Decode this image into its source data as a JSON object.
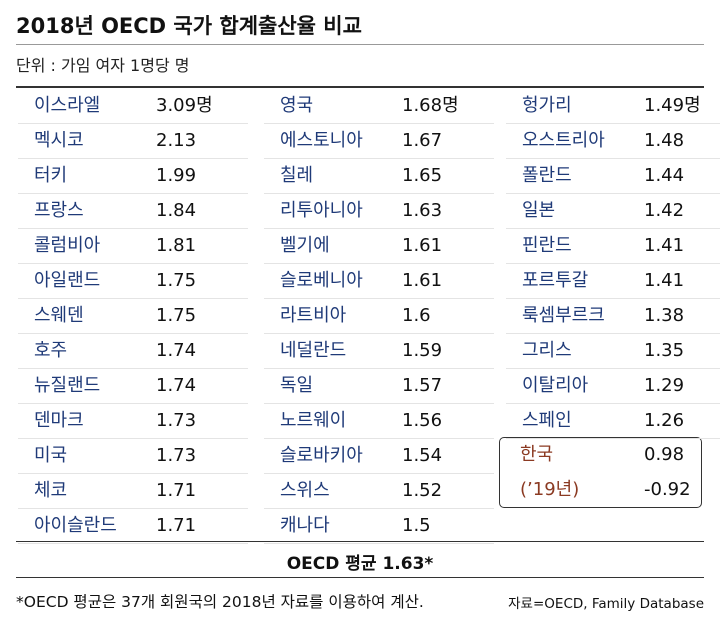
{
  "header": {
    "title": "2018년 OECD 국가 합계출산율 비교",
    "subtitle": "단위 : 가임 여자 1명당 명"
  },
  "table": {
    "columns": [
      [
        [
          "이스라엘",
          "3.09명"
        ],
        [
          "멕시코",
          "2.13"
        ],
        [
          "터키",
          "1.99"
        ],
        [
          "프랑스",
          "1.84"
        ],
        [
          "콜럼비아",
          "1.81"
        ],
        [
          "아일랜드",
          "1.75"
        ],
        [
          "스웨덴",
          "1.75"
        ],
        [
          "호주",
          "1.74"
        ],
        [
          "뉴질랜드",
          "1.74"
        ],
        [
          "덴마크",
          "1.73"
        ],
        [
          "미국",
          "1.73"
        ],
        [
          "체코",
          "1.71"
        ],
        [
          "아이슬란드",
          "1.71"
        ]
      ],
      [
        [
          "영국",
          "1.68명"
        ],
        [
          "에스토니아",
          "1.67"
        ],
        [
          "칠레",
          "1.65"
        ],
        [
          "리투아니아",
          "1.63"
        ],
        [
          "벨기에",
          "1.61"
        ],
        [
          "슬로베니아",
          "1.61"
        ],
        [
          "라트비아",
          "1.6"
        ],
        [
          "네덜란드",
          "1.59"
        ],
        [
          "독일",
          "1.57"
        ],
        [
          "노르웨이",
          "1.56"
        ],
        [
          "슬로바키아",
          "1.54"
        ],
        [
          "스위스",
          "1.52"
        ],
        [
          "캐나다",
          "1.5"
        ]
      ],
      [
        [
          "헝가리",
          "1.49명"
        ],
        [
          "오스트리아",
          "1.48"
        ],
        [
          "폴란드",
          "1.44"
        ],
        [
          "일본",
          "1.42"
        ],
        [
          "핀란드",
          "1.41"
        ],
        [
          "포르투갈",
          "1.41"
        ],
        [
          "룩셈부르크",
          "1.38"
        ],
        [
          "그리스",
          "1.35"
        ],
        [
          "이탈리아",
          "1.29"
        ],
        [
          "스페인",
          "1.26"
        ]
      ]
    ],
    "highlight": [
      [
        "한국",
        "0.98"
      ],
      [
        "(’19년)",
        "-0.92"
      ]
    ],
    "average": "OECD 평균 1.63*"
  },
  "footer": {
    "note": "*OECD 평균은 37개 회원국의 2018년 자료를 이용하여 계산.",
    "source": "자료=OECD, Family Database"
  }
}
